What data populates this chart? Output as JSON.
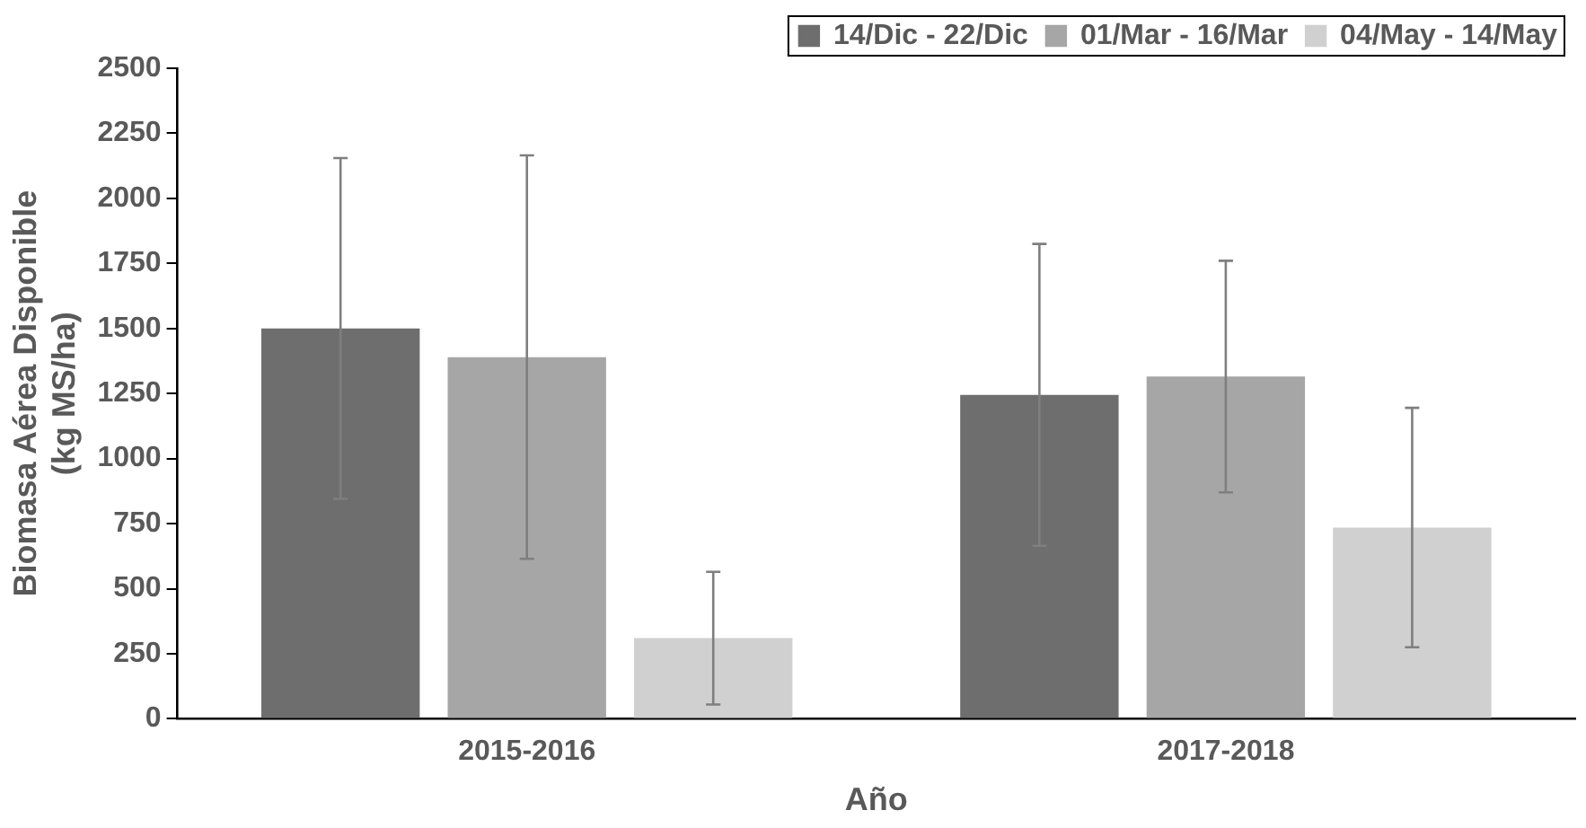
{
  "chart_data": {
    "type": "bar",
    "xlabel": "Año",
    "ylabel": "Biomasa Aérea Disponible\n(kg MS/ha)",
    "categories": [
      "2015-2016",
      "2017-2018"
    ],
    "series": [
      {
        "name": "14/Dic - 22/Dic",
        "color": "#6e6e6e",
        "values": [
          1500,
          1245
        ],
        "errors": [
          655,
          580
        ]
      },
      {
        "name": "01/Mar - 16/Mar",
        "color": "#a6a6a6",
        "values": [
          1390,
          1315
        ],
        "errors": [
          775,
          445
        ]
      },
      {
        "name": "04/May - 14/May",
        "color": "#d0d0d0",
        "values": [
          310,
          735
        ],
        "errors": [
          255,
          460
        ]
      }
    ],
    "ylim": [
      0,
      2500
    ],
    "yticks": [
      0,
      250,
      500,
      750,
      1000,
      1250,
      1500,
      1750,
      2000,
      2250,
      2500
    ],
    "grid": false,
    "legend": "top right"
  }
}
